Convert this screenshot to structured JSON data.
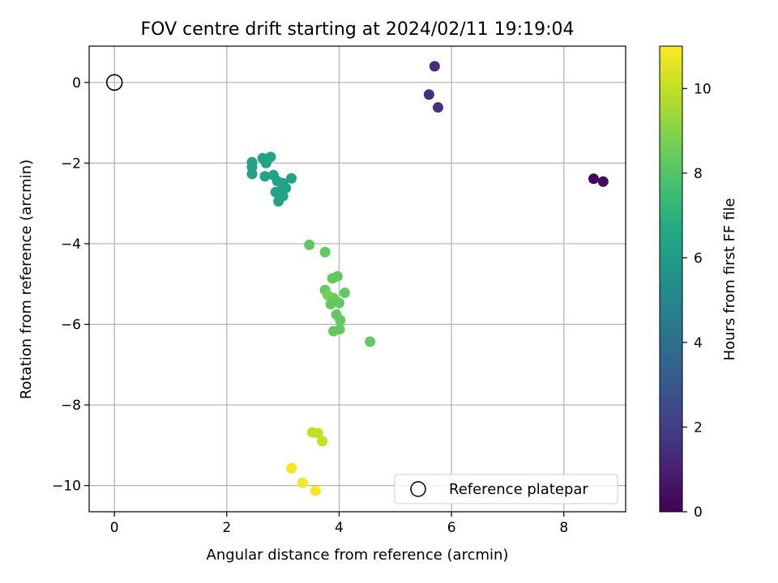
{
  "chart_data": {
    "type": "scatter",
    "title": "FOV centre drift starting at 2024/02/11 19:19:04",
    "xlabel": "Angular distance from reference (arcmin)",
    "ylabel": "Rotation from reference (arcmin)",
    "xlim": [
      -0.45,
      9.1
    ],
    "ylim": [
      -10.65,
      0.9
    ],
    "xticks": [
      0,
      2,
      4,
      6,
      8
    ],
    "yticks": [
      0,
      -2,
      -4,
      -6,
      -8,
      -10
    ],
    "grid": true,
    "colorbar": {
      "label": "Hours from first FF file",
      "range": [
        0,
        11
      ],
      "ticks": [
        0,
        2,
        4,
        6,
        8,
        10
      ],
      "colormap": "viridis"
    },
    "legend": {
      "position": "lower-right",
      "entries": [
        "Reference platepar"
      ]
    },
    "reference_point": {
      "x": 0,
      "y": 0
    },
    "points": [
      {
        "x": 8.53,
        "y": -2.39,
        "hours": 0.2
      },
      {
        "x": 8.7,
        "y": -2.46,
        "hours": 0.3
      },
      {
        "x": 5.7,
        "y": 0.4,
        "hours": 1.4
      },
      {
        "x": 5.6,
        "y": -0.3,
        "hours": 1.5
      },
      {
        "x": 5.76,
        "y": -0.62,
        "hours": 1.6
      },
      {
        "x": 2.45,
        "y": -1.98,
        "hours": 6.3
      },
      {
        "x": 2.45,
        "y": -2.1,
        "hours": 6.3
      },
      {
        "x": 2.45,
        "y": -2.27,
        "hours": 6.3
      },
      {
        "x": 2.64,
        "y": -1.88,
        "hours": 6.3
      },
      {
        "x": 2.7,
        "y": -2.0,
        "hours": 6.3
      },
      {
        "x": 2.78,
        "y": -1.85,
        "hours": 6.3
      },
      {
        "x": 2.68,
        "y": -2.33,
        "hours": 6.3
      },
      {
        "x": 2.83,
        "y": -2.3,
        "hours": 6.3
      },
      {
        "x": 2.9,
        "y": -2.45,
        "hours": 6.3
      },
      {
        "x": 3.0,
        "y": -2.5,
        "hours": 6.3
      },
      {
        "x": 3.05,
        "y": -2.62,
        "hours": 6.3
      },
      {
        "x": 2.95,
        "y": -2.7,
        "hours": 6.3
      },
      {
        "x": 2.87,
        "y": -2.72,
        "hours": 6.3
      },
      {
        "x": 2.92,
        "y": -2.95,
        "hours": 6.3
      },
      {
        "x": 3.0,
        "y": -2.82,
        "hours": 6.3
      },
      {
        "x": 3.15,
        "y": -2.38,
        "hours": 6.3
      },
      {
        "x": 3.47,
        "y": -4.03,
        "hours": 8.3
      },
      {
        "x": 3.75,
        "y": -4.21,
        "hours": 8.3
      },
      {
        "x": 3.88,
        "y": -4.86,
        "hours": 8.3
      },
      {
        "x": 3.97,
        "y": -4.81,
        "hours": 8.3
      },
      {
        "x": 3.75,
        "y": -5.15,
        "hours": 8.3
      },
      {
        "x": 3.8,
        "y": -5.28,
        "hours": 8.7
      },
      {
        "x": 3.9,
        "y": -5.35,
        "hours": 8.5
      },
      {
        "x": 3.85,
        "y": -5.5,
        "hours": 8.3
      },
      {
        "x": 4.0,
        "y": -5.47,
        "hours": 8.3
      },
      {
        "x": 4.1,
        "y": -5.22,
        "hours": 8.3
      },
      {
        "x": 3.95,
        "y": -5.76,
        "hours": 8.3
      },
      {
        "x": 4.02,
        "y": -5.9,
        "hours": 8.3
      },
      {
        "x": 4.01,
        "y": -6.12,
        "hours": 8.3
      },
      {
        "x": 3.9,
        "y": -6.17,
        "hours": 8.3
      },
      {
        "x": 4.55,
        "y": -6.43,
        "hours": 8.3
      },
      {
        "x": 3.52,
        "y": -8.68,
        "hours": 10.0
      },
      {
        "x": 3.62,
        "y": -8.7,
        "hours": 10.0
      },
      {
        "x": 3.7,
        "y": -8.9,
        "hours": 10.0
      },
      {
        "x": 3.15,
        "y": -9.57,
        "hours": 10.9
      },
      {
        "x": 3.35,
        "y": -9.93,
        "hours": 10.9
      },
      {
        "x": 3.58,
        "y": -10.13,
        "hours": 10.9
      }
    ]
  }
}
